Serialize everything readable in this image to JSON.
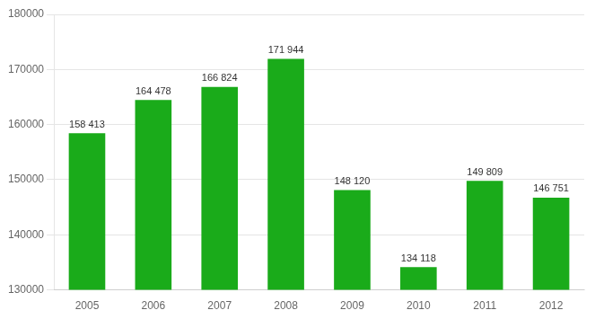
{
  "chart_data": {
    "type": "bar",
    "categories": [
      "2005",
      "2006",
      "2007",
      "2008",
      "2009",
      "2010",
      "2011",
      "2012"
    ],
    "values": [
      158413,
      164478,
      166824,
      171944,
      148120,
      134118,
      149809,
      146751
    ],
    "value_labels": [
      "158 413",
      "164 478",
      "166 824",
      "171 944",
      "148 120",
      "134 118",
      "149 809",
      "146 751"
    ],
    "data_labels": true,
    "color": "#1aab1a",
    "ylim": [
      130000,
      180000
    ],
    "yticks": [
      130000,
      140000,
      150000,
      160000,
      170000,
      180000
    ],
    "grid": true
  }
}
